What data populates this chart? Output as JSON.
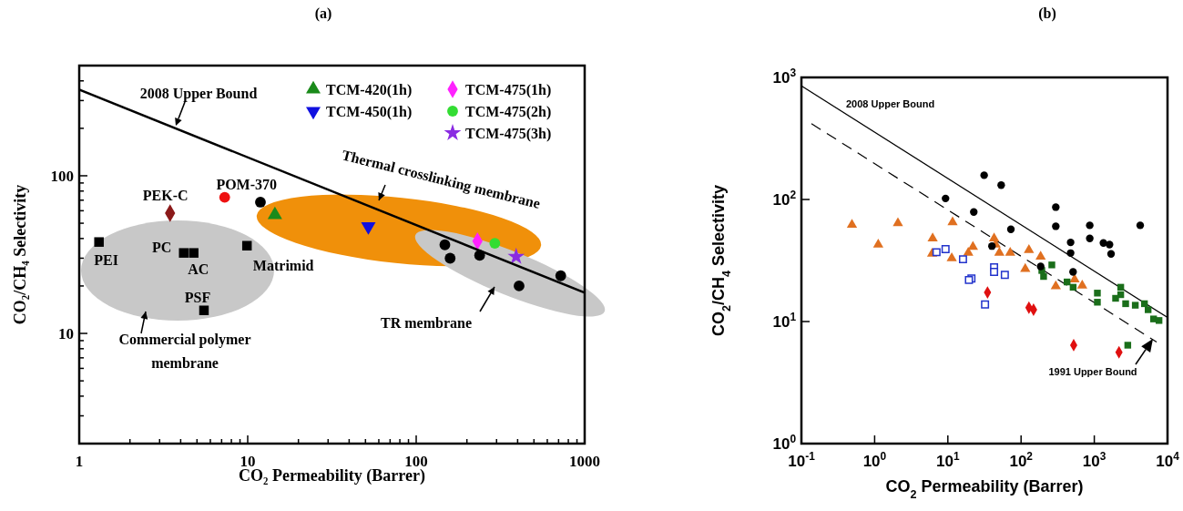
{
  "chart_data": [
    {
      "type": "scatter",
      "title": "(a)",
      "xlabel": "CO₂ Permeability (Barrer)",
      "ylabel": "CO₂/CH₄ Selectivity",
      "log": "xy",
      "legend": "top right",
      "xlim": [
        1,
        1000
      ],
      "ylim": [
        2,
        500
      ],
      "xticks": [
        1,
        {
          "value": 2,
          "label": null
        },
        {
          "value": 3,
          "label": null
        },
        {
          "value": 4,
          "label": null
        },
        {
          "value": 5,
          "label": null
        },
        {
          "value": 6,
          "label": null
        },
        {
          "value": 7,
          "label": null
        },
        {
          "value": 8,
          "label": null
        },
        {
          "value": 9,
          "label": null
        },
        10,
        {
          "value": 20,
          "label": null
        },
        {
          "value": 30,
          "label": null
        },
        {
          "value": 40,
          "label": null
        },
        {
          "value": 50,
          "label": null
        },
        {
          "value": 60,
          "label": null
        },
        {
          "value": 70,
          "label": null
        },
        {
          "value": 80,
          "label": null
        },
        {
          "value": 90,
          "label": null
        },
        100,
        {
          "value": 200,
          "label": null
        },
        {
          "value": 300,
          "label": null
        },
        {
          "value": 400,
          "label": null
        },
        {
          "value": 500,
          "label": null
        },
        {
          "value": 600,
          "label": null
        },
        {
          "value": 700,
          "label": null
        },
        {
          "value": 800,
          "label": null
        },
        {
          "value": 900,
          "label": null
        },
        1000
      ],
      "yticks": [
        {
          "value": 2,
          "label": null
        },
        {
          "value": 3,
          "label": null
        },
        {
          "value": 4,
          "label": null
        },
        {
          "value": 5,
          "label": null
        },
        {
          "value": 6,
          "label": null
        },
        {
          "value": 7,
          "label": null
        },
        {
          "value": 8,
          "label": null
        },
        {
          "value": 9,
          "label": null
        },
        10,
        {
          "value": 20,
          "label": null
        },
        {
          "value": 30,
          "label": null
        },
        {
          "value": 40,
          "label": null
        },
        {
          "value": 50,
          "label": null
        },
        {
          "value": 60,
          "label": null
        },
        {
          "value": 70,
          "label": null
        },
        {
          "value": 80,
          "label": null
        },
        {
          "value": 90,
          "label": null
        },
        100,
        {
          "value": 200,
          "label": null
        },
        {
          "value": 300,
          "label": null
        },
        {
          "value": 400,
          "label": null
        },
        {
          "value": 500,
          "label": null
        }
      ],
      "series": [
        {
          "color": "#000000",
          "marker": "square",
          "x": [
            1.31,
            4.17,
            4.78,
            9.9,
            5.5
          ],
          "values": [
            38,
            32.4,
            32.4,
            36,
            14
          ]
        },
        {
          "color": "#8b1a1a",
          "marker": "diamond",
          "x": [
            3.46
          ],
          "values": [
            58
          ]
        },
        {
          "color": "#ee1111",
          "marker": "circle",
          "x": [
            7.3
          ],
          "values": [
            73
          ]
        },
        {
          "color": "#000000",
          "marker": "circle",
          "x": [
            11.9,
            148,
            159,
            238,
            408,
            721
          ],
          "values": [
            68,
            36.5,
            30,
            31.3,
            20,
            23.2
          ]
        },
        {
          "name": "TCM-420(1h)",
          "color": "#1a8a1a",
          "marker": "triangle",
          "x": [
            14.5
          ],
          "values": [
            56.5
          ]
        },
        {
          "name": "TCM-450(1h)",
          "color": "#1010e0",
          "marker": "triangle-down",
          "x": [
            52
          ],
          "values": [
            47.7
          ]
        },
        {
          "name": "TCM-475(1h)",
          "color": "#ff22ff",
          "marker": "diamond",
          "x": [
            231
          ],
          "values": [
            38.5
          ]
        },
        {
          "name": "TCM-475(2h)",
          "color": "#33dd33",
          "marker": "circle",
          "x": [
            293
          ],
          "values": [
            37.3
          ]
        },
        {
          "name": "TCM-475(3h)",
          "color": "#8a2be2",
          "marker": "star",
          "x": [
            392
          ],
          "values": [
            30.7
          ]
        },
        {
          "name": "2008 Upper Bound",
          "type": "line",
          "color": "#000000",
          "marker": "none",
          "line_style": "solid",
          "x": [
            1,
            1000
          ],
          "values": [
            352,
            18.1
          ]
        }
      ],
      "annotations": [
        {
          "text": "PEI",
          "x": 1.31,
          "y": 38
        },
        {
          "text": "PC",
          "x": 4.17,
          "y": 32.4
        },
        {
          "text": "AC",
          "x": 4.78,
          "y": 32.4
        },
        {
          "text": "Matrimid",
          "x": 9.9,
          "y": 36
        },
        {
          "text": "PSF",
          "x": 5.5,
          "y": 14
        },
        {
          "text": "PEK-C",
          "x": 3.46,
          "y": 58
        },
        {
          "text": "POM-370",
          "x": 7.3,
          "y": 73
        },
        "Thermal crosslinking membrane",
        "Commercial polymer membrane",
        "TR membrane"
      ]
    },
    {
      "type": "scatter",
      "title": "(b)",
      "xlabel": "CO$_{2}$ Permeability (Barrer)",
      "ylabel": "CO$_{2}$/CH$_{4}$ Selectivity",
      "log": "xy",
      "xlim": [
        0.1,
        10000
      ],
      "ylim": [
        1,
        1000
      ],
      "xticks": [
        {
          "value": 0.1,
          "label": "10$^{-1}$"
        },
        {
          "value": 1,
          "label": "10$^{0}$"
        },
        {
          "value": 10,
          "label": "10$^{1}$"
        },
        {
          "value": 100,
          "label": "10$^{2}$"
        },
        {
          "value": 1000,
          "label": "10$^{3}$"
        },
        {
          "value": 10000,
          "label": "10$^{4}$"
        }
      ],
      "yticks": [
        {
          "value": 1,
          "label": "10$^{0}$"
        },
        {
          "value": 10,
          "label": "10$^{1}$"
        },
        {
          "value": 100,
          "label": "10$^{2}$"
        },
        {
          "value": 1000,
          "label": "10$^{3}$"
        }
      ],
      "series": [
        {
          "name": "2008 Upper Bound",
          "type": "line",
          "color": "#000000",
          "marker": "none",
          "line_style": "solid",
          "x": [
            0.1,
            10000
          ],
          "values": [
            853,
            10.8
          ]
        },
        {
          "name": "1991 Upper Bound",
          "type": "line",
          "color": "#000000",
          "marker": "none",
          "line_style": "dashed",
          "x": [
            0.137,
            7100
          ],
          "values": [
            418,
            6.8
          ]
        },
        {
          "color": "#e07020",
          "marker": "triangle",
          "x": [
            0.49,
            1.12,
            2.08,
            11.6,
            6.2,
            6.1,
            11.3,
            19,
            22,
            42.8,
            45,
            50.5,
            71,
            128,
            185,
            114,
            298,
            538,
            684
          ],
          "values": [
            62,
            42.8,
            63.9,
            65,
            48,
            36,
            33,
            36.6,
            40.9,
            48,
            42.8,
            36.6,
            36.6,
            38.6,
            34,
            27,
            19.5,
            22.1,
            19.7
          ]
        },
        {
          "color": "#2233cc",
          "marker": "square-open",
          "x": [
            7.0,
            9.3,
            16.1,
            21,
            19.4,
            42.8,
            42.8,
            60,
            32.2
          ],
          "values": [
            37,
            39.2,
            32.4,
            22.5,
            21.9,
            27.8,
            25.5,
            24.1,
            13.8
          ]
        },
        {
          "color": "#e01010",
          "marker": "diamond",
          "x": [
            34.8,
            128,
            148,
            523,
            2173
          ],
          "values": [
            17.3,
            13,
            12.5,
            6.4,
            5.6
          ]
        },
        {
          "color": "#1a6e1a",
          "marker": "square",
          "x": [
            263,
            192,
            203,
            425,
            514,
            1102,
            1102,
            2296,
            2296,
            1954,
            2680,
            3630,
            4840,
            5430,
            6450,
            7650,
            2865
          ],
          "values": [
            29.1,
            26.2,
            23.4,
            21.1,
            19.1,
            17.1,
            14.4,
            19.1,
            16.6,
            15.5,
            14,
            13.6,
            14,
            12.5,
            10.5,
            10.2,
            6.4
          ]
        },
        {
          "color": "#000000",
          "marker": "circle",
          "x": [
            9.3,
            31.3,
            53.5,
            22.6,
            72.6,
            40,
            298,
            298,
            475,
            475,
            513,
            867,
            867,
            1333,
            1614,
            1694,
            4236,
            185
          ],
          "values": [
            102,
            158,
            131,
            79,
            57,
            41.5,
            86.5,
            60.3,
            44.5,
            36.4,
            25.5,
            61.4,
            48,
            44,
            42.7,
            35.8,
            61.4,
            28.3
          ]
        }
      ]
    }
  ]
}
